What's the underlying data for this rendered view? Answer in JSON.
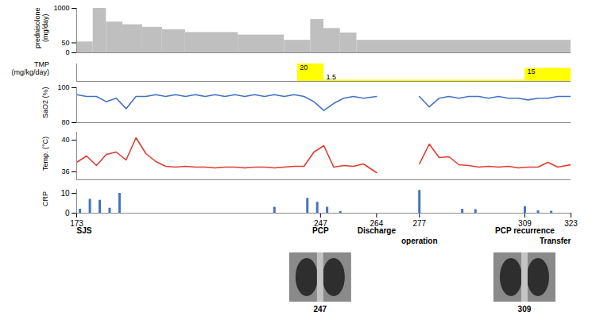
{
  "chart_data": [
    {
      "type": "bar",
      "y_label": "prednisolone (mg/day)",
      "bins": [
        173,
        178,
        182,
        187,
        193,
        199,
        206,
        222,
        236,
        244,
        248,
        253,
        258,
        323
      ],
      "values": [
        60,
        1000,
        480,
        400,
        330,
        270,
        210,
        160,
        80,
        560,
        300,
        200,
        80
      ],
      "color": "#bfbfbf",
      "ylim": [
        0,
        1000
      ],
      "yticks": [
        0,
        50,
        1000
      ],
      "tick_labels": "y"
    },
    {
      "type": "bar",
      "y_label": "TMP (mg/kg/day)",
      "bins": [
        240,
        248,
        309,
        323
      ],
      "values": [
        20,
        1.5,
        15
      ],
      "color": "#ffff00",
      "ylim": [
        0,
        20
      ],
      "data_labels": true,
      "tick_labels": false
    },
    {
      "type": "line",
      "y_label": "SaO2 (%)",
      "x": [
        173,
        176,
        179,
        182,
        185,
        188,
        191,
        194,
        197,
        200,
        203,
        206,
        209,
        212,
        215,
        218,
        221,
        224,
        227,
        230,
        233,
        236,
        239,
        242,
        245,
        248,
        251,
        254,
        257,
        260,
        264,
        270,
        277,
        280,
        283,
        286,
        289,
        292,
        295,
        298,
        301,
        304,
        307,
        310,
        313,
        316,
        319,
        323
      ],
      "values": [
        96,
        95,
        95,
        92,
        94,
        88,
        95,
        95,
        96,
        95,
        96,
        95,
        96,
        95,
        96,
        95,
        96,
        95,
        96,
        95,
        96,
        95,
        96,
        95,
        92,
        87,
        91,
        94,
        95,
        94,
        95,
        null,
        95,
        89,
        94,
        95,
        94,
        95,
        95,
        94,
        95,
        94,
        94,
        93,
        94,
        94,
        95,
        95
      ],
      "color": "#4472c4",
      "ylim": [
        80,
        100
      ],
      "yticks": [
        80,
        100
      ],
      "tick_labels": "y"
    },
    {
      "type": "line",
      "y_label": "Temp. (°C)",
      "x": [
        173,
        176,
        179,
        182,
        185,
        188,
        191,
        194,
        197,
        200,
        203,
        206,
        209,
        212,
        215,
        218,
        221,
        224,
        227,
        230,
        233,
        236,
        239,
        242,
        245,
        248,
        251,
        254,
        257,
        260,
        264,
        270,
        277,
        280,
        283,
        286,
        289,
        292,
        295,
        298,
        301,
        304,
        307,
        310,
        313,
        316,
        319,
        323
      ],
      "values": [
        37.2,
        38.0,
        36.8,
        38.2,
        38.5,
        37.5,
        40.3,
        38.3,
        37.3,
        36.7,
        36.6,
        36.7,
        36.6,
        36.6,
        36.5,
        36.6,
        36.6,
        36.5,
        36.6,
        36.6,
        36.5,
        36.6,
        36.7,
        36.7,
        38.5,
        39.3,
        36.6,
        36.8,
        36.7,
        37.0,
        35.9,
        null,
        37.0,
        39.5,
        37.8,
        37.9,
        36.9,
        36.8,
        36.6,
        36.7,
        36.6,
        36.7,
        36.5,
        36.6,
        36.6,
        37.2,
        36.6,
        36.9
      ],
      "color": "#e03c31",
      "ylim": [
        35,
        41
      ],
      "yticks": [
        36,
        40
      ],
      "tick_labels": "y"
    },
    {
      "type": "bar",
      "y_label": "CRP",
      "x": [
        174,
        177,
        180,
        183,
        186,
        233,
        243,
        246,
        249,
        253,
        277,
        290,
        294,
        309,
        313,
        317
      ],
      "values": [
        2,
        7,
        6.5,
        2.5,
        10,
        3,
        7.5,
        5.5,
        3,
        0.8,
        11.5,
        2,
        1.8,
        3.3,
        1.2,
        1
      ],
      "color": "#4472c4",
      "ylim": [
        0,
        12
      ],
      "yticks": [
        0,
        10
      ],
      "xlim": [
        173,
        323
      ],
      "xticks": [
        173,
        247,
        264,
        277,
        309,
        323
      ],
      "annotations": [
        {
          "x": 173,
          "text": "SJS"
        },
        {
          "x": 247,
          "text": "PCP"
        },
        {
          "x": 264,
          "text": "Discharge"
        },
        {
          "x": 277,
          "text": "operation"
        },
        {
          "x": 309,
          "text": "PCP recurrence"
        },
        {
          "x": 323,
          "text": "Transfer"
        }
      ],
      "images": [
        247,
        309
      ]
    }
  ]
}
